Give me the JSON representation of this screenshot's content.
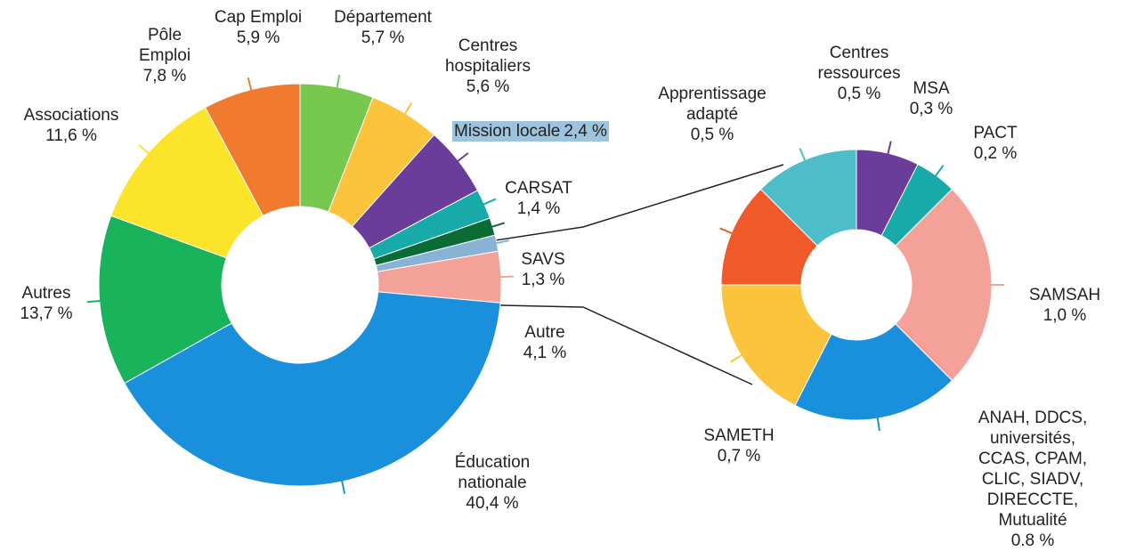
{
  "chart_data": [
    {
      "type": "donut",
      "categories": [
        "Cap Emploi",
        "Département",
        "Centres\nhospitaliers",
        "Mission locale",
        "CARSAT",
        "SAVS",
        "Autre",
        "Éducation\nnationale",
        "Autres",
        "Associations",
        "Pôle\nEmploi"
      ],
      "values": [
        5.9,
        5.7,
        5.6,
        2.4,
        1.4,
        1.3,
        4.1,
        40.4,
        13.7,
        11.6,
        7.8
      ],
      "value_labels": [
        "5,9 %",
        "5,7 %",
        "5,6 %",
        "2,4 %",
        "1,4 %",
        "1,3 %",
        "4,1 %",
        "40,4 %",
        "13,7 %",
        "11,6 %",
        "7,8 %"
      ],
      "colors": [
        "#77c84e",
        "#fcc43d",
        "#6a3d9a",
        "#18a9a9",
        "#0a6b35",
        "#89b3d4",
        "#f4a19a",
        "#1a8fdc",
        "#18b35b",
        "#fbe42a",
        "#f07b2f"
      ]
    },
    {
      "type": "donut",
      "categories": [
        "MSA",
        "PACT",
        "SAMSAH",
        "ANAH, DDCS,\nuniversités, CCAS, CPAM,\nCLIC, SIADV, DIRECCTE,\nMutualité",
        "SAMETH",
        "Apprentissage\nadapté",
        "Centres\nressources"
      ],
      "values": [
        0.3,
        0.2,
        1.0,
        0.8,
        0.7,
        0.5,
        0.5
      ],
      "value_labels": [
        "0,3 %",
        "0,2 %",
        "1,0 %",
        "0.8 %",
        "0,7 %",
        "0,5 %",
        "0,5 %"
      ],
      "colors": [
        "#6a3d9a",
        "#18a9a9",
        "#f4a19a",
        "#1a8fdc",
        "#fcc43d",
        "#f05a2a",
        "#4dbdc9"
      ]
    }
  ]
}
